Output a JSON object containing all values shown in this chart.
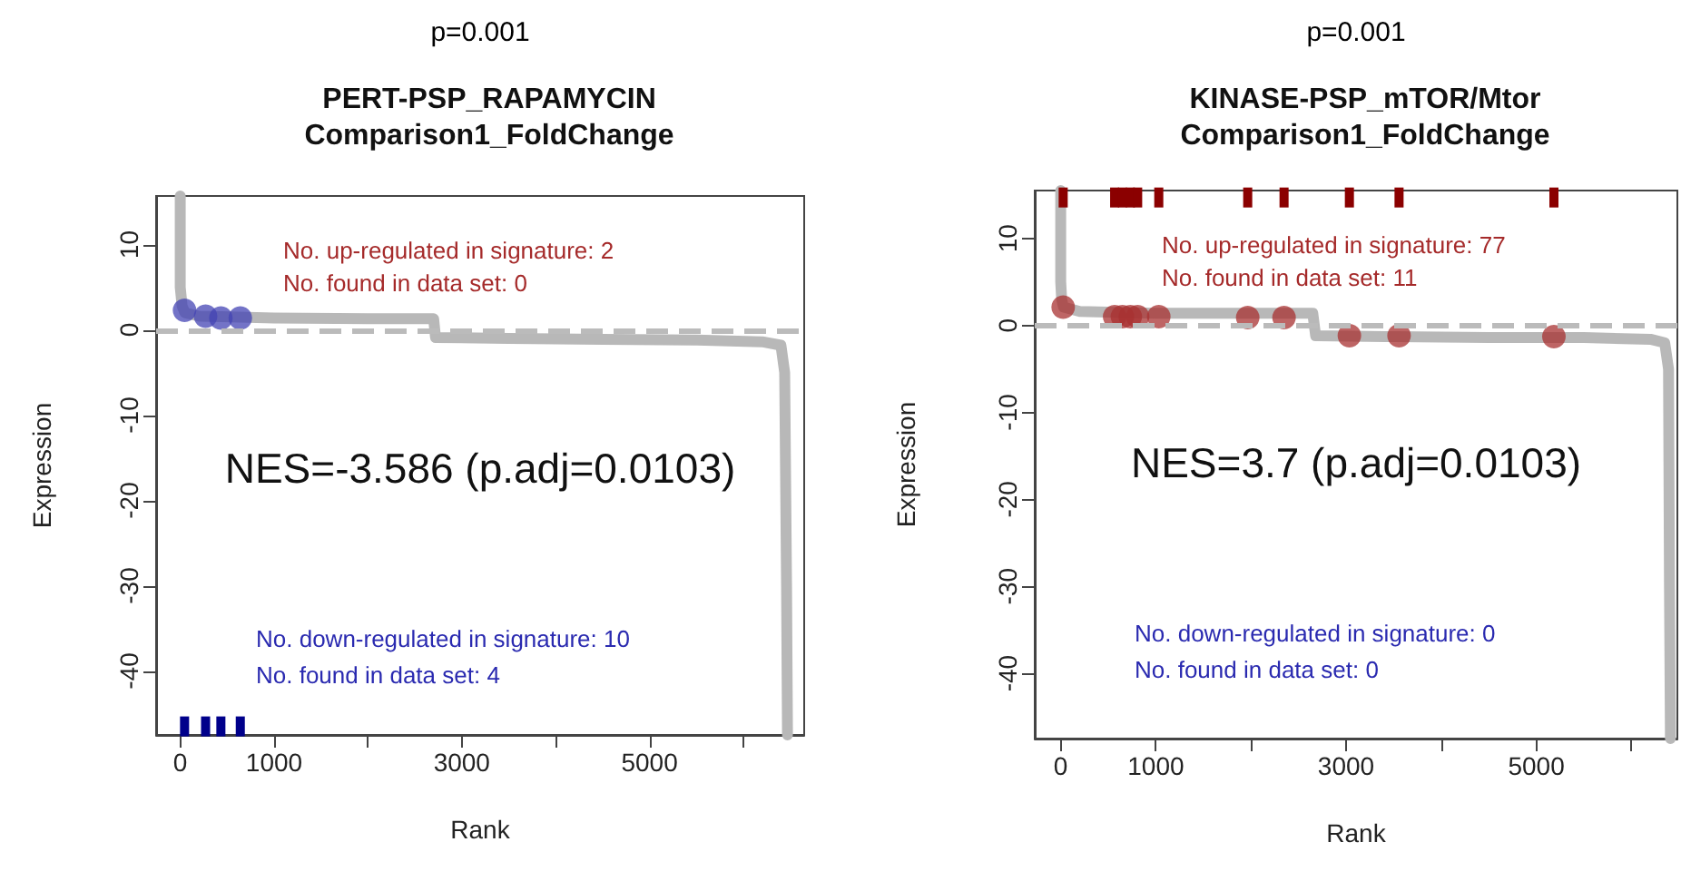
{
  "chart_data": [
    {
      "type": "line",
      "title": "PERT-PSP_RAPAMYCIN",
      "subtitle": "Comparison1_FoldChange",
      "xlabel": "Rank",
      "ylabel": "Expression",
      "annotations": [
        "p=0.001",
        "No. up-regulated in signature: 2",
        "No. found in data set: 0",
        "NES=-3.586 (p.adj=0.0103)",
        "No. down-regulated in signature: 10",
        "No. found in data set: 4"
      ],
      "xlim": [
        -257,
        6648
      ],
      "xticks": [
        0,
        1000,
        {
          "value": 2000,
          "label": null
        },
        3000,
        {
          "value": 4000,
          "label": null
        },
        5000,
        {
          "value": 6000,
          "label": null
        }
      ],
      "ylim": [
        -47.5,
        15.7
      ],
      "yticks": [
        -40,
        -30,
        -20,
        -10,
        0,
        10
      ],
      "grid": false,
      "ref_lines": [
        {
          "axis": "y",
          "value": 0,
          "color": "#bbbbbb",
          "line_style": "dashed"
        }
      ],
      "series": [
        {
          "color": "#b8b8b8",
          "marker": "none",
          "x": [
            0,
            0,
            20,
            50,
            200,
            1000,
            2000,
            2700,
            2720,
            3500,
            4500,
            5500,
            6200,
            6400,
            6440,
            6460,
            6470
          ],
          "values": [
            15.7,
            5,
            2.8,
            2.0,
            1.6,
            1.4,
            1.3,
            1.3,
            -0.9,
            -1.0,
            -1.1,
            -1.2,
            -1.4,
            -1.8,
            -5,
            -30,
            -47.5
          ]
        },
        {
          "type": "scatter",
          "color": "#4444b4",
          "marker": "circle",
          "x": [
            46,
            270,
            433,
            640
          ],
          "values": [
            2.3,
            1.6,
            1.4,
            1.4
          ]
        },
        {
          "type": "scatter",
          "color": "#00008b",
          "marker": "square",
          "x": [
            46,
            270,
            433,
            640
          ],
          "values": [
            -46.5,
            -46.5,
            -46.5,
            -46.5
          ]
        }
      ]
    },
    {
      "type": "line",
      "title": "KINASE-PSP_mTOR/Mtor",
      "subtitle": "Comparison1_FoldChange",
      "xlabel": "Rank",
      "ylabel": "Expression",
      "annotations": [
        "p=0.001",
        "No. up-regulated in signature: 77",
        "No. found in data set: 11",
        "NES=3.7 (p.adj=0.0103)",
        "No. down-regulated in signature: 0",
        "No. found in data set: 0"
      ],
      "xlim": [
        -273,
        6483
      ],
      "xticks": [
        0,
        1000,
        {
          "value": 2000,
          "label": null
        },
        3000,
        {
          "value": 4000,
          "label": null
        },
        5000,
        {
          "value": 6000,
          "label": null
        }
      ],
      "ylim": [
        -47.5,
        15.5
      ],
      "yticks": [
        -40,
        -30,
        -20,
        -10,
        0,
        10
      ],
      "grid": false,
      "ref_lines": [
        {
          "axis": "y",
          "value": 0,
          "color": "#bbbbbb",
          "line_style": "dashed"
        }
      ],
      "series": [
        {
          "color": "#b8b8b8",
          "marker": "none",
          "x": [
            0,
            0,
            10,
            30,
            200,
            1000,
            2000,
            2650,
            2680,
            3500,
            4500,
            5500,
            6200,
            6350,
            6390,
            6400,
            6410
          ],
          "values": [
            15.5,
            5,
            3.0,
            2.1,
            1.6,
            1.4,
            1.4,
            1.4,
            -1.2,
            -1.3,
            -1.4,
            -1.4,
            -1.6,
            -2.0,
            -5,
            -30,
            -47.5
          ]
        },
        {
          "type": "scatter",
          "color": "#a83232",
          "marker": "circle",
          "x": [
            26,
            567,
            649,
            732,
            809,
            1031,
            1966,
            2348,
            3035,
            3557,
            5185
          ],
          "values": [
            2.1,
            1.0,
            1.0,
            1.0,
            1.0,
            1.0,
            0.9,
            0.9,
            -1.2,
            -1.2,
            -1.3
          ]
        },
        {
          "type": "scatter",
          "color": "#8b0000",
          "marker": "square",
          "x": [
            26,
            567,
            649,
            732,
            809,
            1031,
            1966,
            2348,
            3035,
            3557,
            5185
          ],
          "values": [
            14.7,
            14.7,
            14.7,
            14.7,
            14.7,
            14.7,
            14.7,
            14.7,
            14.7,
            14.7,
            14.7
          ]
        }
      ]
    }
  ]
}
